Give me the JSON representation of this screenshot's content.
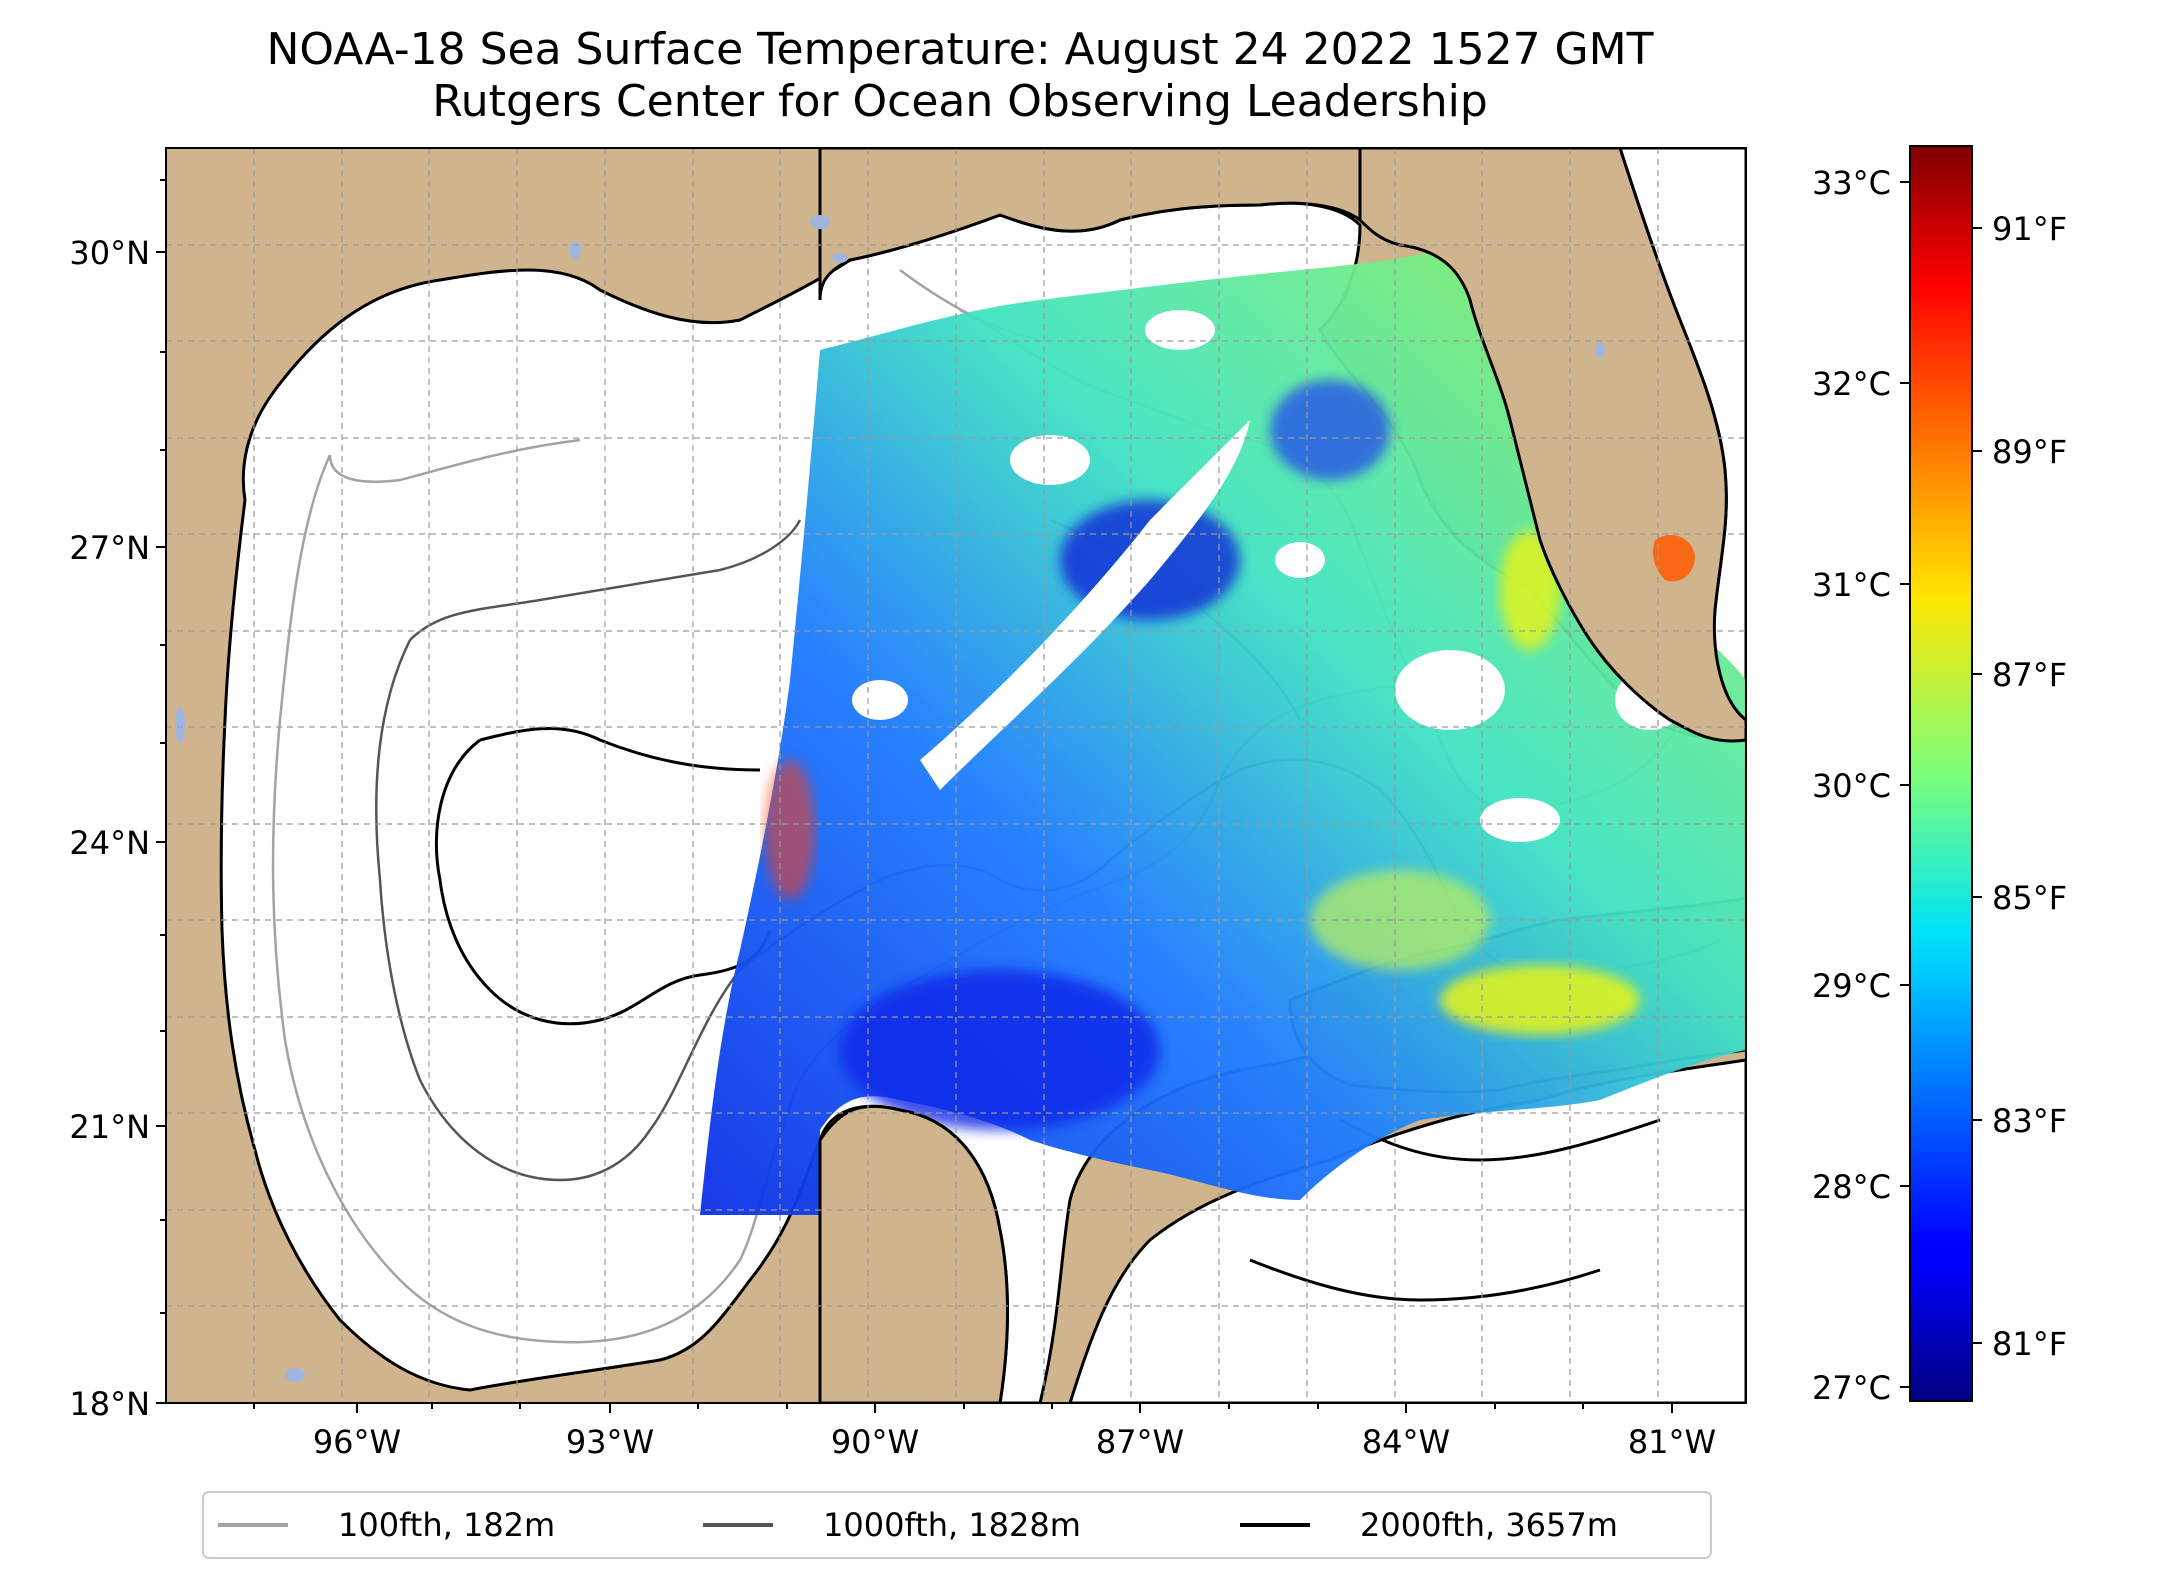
{
  "title": {
    "line1": "NOAA-18 Sea Surface Temperature: August 24 2022 1527 GMT",
    "line2": "Rutgers Center for Ocean Observing Leadership"
  },
  "map": {
    "lon_ticks": [
      "96°W",
      "93°W",
      "90°W",
      "87°W",
      "84°W",
      "81°W"
    ],
    "lat_ticks": [
      "30°N",
      "27°N",
      "24°N",
      "21°N",
      "18°N"
    ],
    "extent": {
      "lon_min": -98.25,
      "lon_max": -80.25,
      "lat_min": 18,
      "lat_max": 31
    },
    "land_color": "#cfb48d",
    "water_color": "#ffffff",
    "lake_color": "#a0b6e0"
  },
  "colorbar": {
    "celsius_ticks": [
      "33°C",
      "32°C",
      "31°C",
      "30°C",
      "29°C",
      "28°C",
      "27°C"
    ],
    "fahrenheit_ticks": [
      "91°F",
      "89°F",
      "87°F",
      "85°F",
      "83°F",
      "81°F"
    ],
    "colormap": "jet",
    "range_f": [
      80.2,
      92.2
    ]
  },
  "legend": {
    "items": [
      {
        "label": "100fth, 182m",
        "color": "#a3a3a3"
      },
      {
        "label": "1000fth, 1828m",
        "color": "#555555"
      },
      {
        "label": "2000fth, 3657m",
        "color": "#000000"
      }
    ]
  }
}
